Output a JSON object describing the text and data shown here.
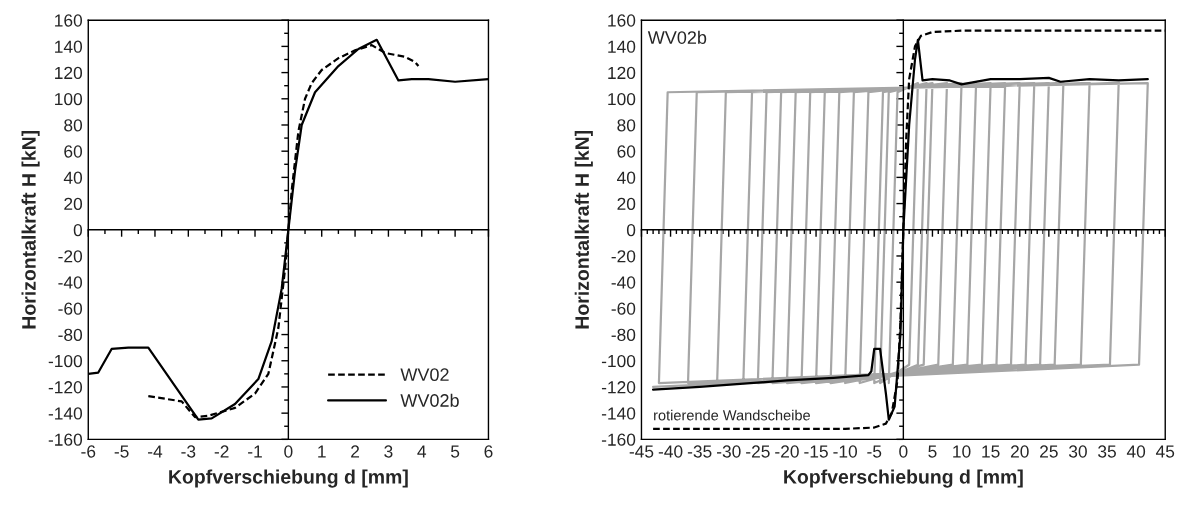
{
  "chart_data": [
    {
      "type": "line",
      "xlabel": "Kopfverschiebung d [mm]",
      "ylabel": "Horizontalkraft H [kN]",
      "xlim": [
        -6,
        6
      ],
      "ylim": [
        -160,
        160
      ],
      "xticks": [
        -6,
        -5,
        -4,
        -3,
        -2,
        -1,
        0,
        1,
        2,
        3,
        4,
        5,
        6
      ],
      "yticks": [
        -160,
        -140,
        -120,
        -100,
        -80,
        -60,
        -40,
        -20,
        0,
        20,
        40,
        60,
        80,
        100,
        120,
        140,
        160
      ],
      "legend": "bottom right",
      "series": [
        {
          "name": "WV02",
          "color": "#000000",
          "line_style": "dashed",
          "x": [
            -4.2,
            -3.2,
            -2.8,
            -2.4,
            -1.6,
            -1,
            -0.6,
            -0.3,
            -0.1,
            0,
            0.1,
            0.3,
            0.5,
            0.7,
            1,
            1.5,
            2,
            2.5,
            2.9,
            3.5,
            3.8,
            3.9
          ],
          "values": [
            -127,
            -131,
            -143,
            -142,
            -136,
            -125,
            -110,
            -75,
            -30,
            0,
            30,
            75,
            100,
            112,
            122,
            131,
            137,
            141,
            135,
            132,
            128,
            125
          ]
        },
        {
          "name": "WV02b",
          "color": "#000000",
          "line_style": "solid",
          "x": [
            -6,
            -5.7,
            -5.3,
            -4.8,
            -4.2,
            -2.7,
            -2.3,
            -1.6,
            -0.9,
            -0.5,
            -0.2,
            0,
            0.2,
            0.4,
            0.8,
            1.5,
            2.1,
            2.65,
            3.3,
            3.7,
            4.2,
            5,
            6
          ],
          "values": [
            -110,
            -109,
            -91,
            -90,
            -90,
            -145,
            -144,
            -133,
            -114,
            -85,
            -45,
            0,
            45,
            80,
            105,
            125,
            138,
            145,
            114,
            115,
            115,
            113,
            115
          ]
        }
      ]
    },
    {
      "type": "line",
      "xlabel": "Kopfverschiebung d [mm]",
      "ylabel": "Horizontalkraft H [kN]",
      "xlim": [
        -45,
        45
      ],
      "ylim": [
        -160,
        160
      ],
      "xticks": [
        -45,
        -40,
        -35,
        -30,
        -25,
        -20,
        -15,
        -10,
        -5,
        0,
        5,
        10,
        15,
        20,
        25,
        30,
        35,
        40,
        45
      ],
      "yticks": [
        -160,
        -140,
        -120,
        -100,
        -80,
        -60,
        -40,
        -20,
        0,
        20,
        40,
        60,
        80,
        100,
        120,
        140,
        160
      ],
      "annotations": [
        "WV02b",
        {
          "text": "rotierende Wandscheibe",
          "x": -43,
          "y": -152
        }
      ],
      "series": [
        {
          "color": "#a6a6a6",
          "line_style": "solid",
          "x": [
            -2.5,
            -1,
            2.5,
            1,
            -4,
            -2.5,
            4,
            2.5,
            -5,
            -3.5,
            5,
            3.5,
            -7.5,
            -6,
            7.5,
            6,
            -10,
            -8.5,
            10,
            8.5,
            -12.5,
            -11,
            12.5,
            11,
            -15,
            -13.5,
            15,
            13.5,
            -17.5,
            -16,
            17.5,
            16,
            -20,
            -18.5,
            20,
            18.5,
            -22.5,
            -21,
            22.5,
            21,
            -25,
            -23.5,
            25,
            23.5,
            -27.5,
            -26,
            27.5,
            26,
            -32,
            -30.5,
            32,
            30.5,
            -37,
            -35.5,
            37,
            35.5,
            -42,
            -40.5,
            42,
            40.5,
            -43
          ],
          "values": [
            -117,
            105,
            112,
            -103,
            -117,
            105,
            112,
            -103,
            -117,
            105,
            112,
            -103,
            -117,
            105,
            112,
            -103,
            -117,
            105,
            112,
            -103,
            -117,
            105,
            112,
            -103,
            -117,
            105,
            112,
            -103,
            -117,
            105,
            112,
            -103,
            -117,
            105,
            112,
            -103,
            -117,
            105,
            112,
            -103,
            -117,
            105,
            112,
            -103,
            -117,
            105,
            112,
            -103,
            -117,
            105,
            112,
            -103,
            -117,
            105,
            112,
            -103,
            -117,
            105,
            112,
            -103,
            -120
          ]
        },
        {
          "color": "#000000",
          "line_style": "dashed",
          "x": [
            -43,
            -10,
            -5,
            -3,
            -2,
            -1,
            -0.5,
            0,
            0.5,
            1,
            2,
            3,
            5,
            10,
            45
          ],
          "values": [
            -152,
            -152,
            -151,
            -148,
            -140,
            -115,
            -70,
            0,
            70,
            115,
            140,
            148,
            151,
            152,
            152
          ]
        },
        {
          "color": "#000000",
          "line_style": "solid",
          "x": [
            -43,
            -35,
            -20,
            -12,
            -6,
            -5.5,
            -5,
            -4,
            -3,
            -2.5,
            -1.5,
            -0.5,
            0,
            1,
            2,
            2.5,
            3.3,
            5,
            8,
            10,
            15,
            20,
            25,
            27,
            32,
            37,
            42
          ],
          "values": [
            -122,
            -120,
            -115,
            -113,
            -111,
            -108,
            -91,
            -91,
            -125,
            -145,
            -135,
            -80,
            0,
            80,
            130,
            145,
            114,
            115,
            114,
            111,
            115,
            115,
            116,
            113,
            115,
            114,
            115
          ]
        }
      ]
    }
  ]
}
